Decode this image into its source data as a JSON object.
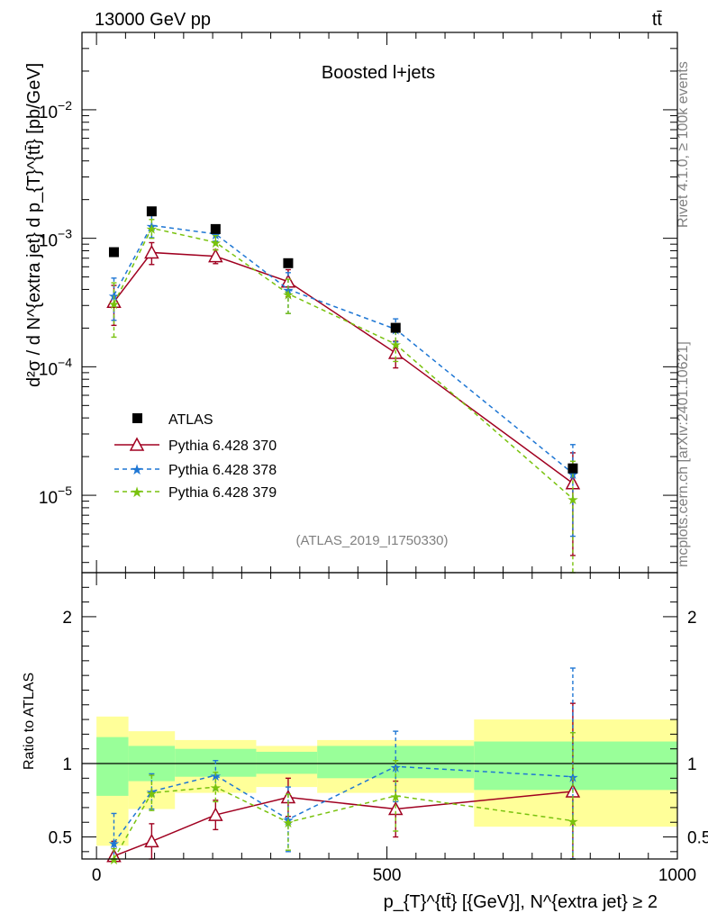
{
  "header": {
    "left_label": "13000 GeV pp",
    "right_label": "tt̄"
  },
  "side_labels": {
    "rivet": "Rivet 4.1.0, ≥ 100k events",
    "mcplots": "mcplots.cern.ch [arXiv:2401.10621]"
  },
  "chart_data": {
    "type": "line",
    "title": "Boosted l+jets",
    "analysis_tag": "(ATLAS_2019_I1750330)",
    "xlabel": "p_{T}^{tt̄} [{GeV}], N^{extra jet} ≥ 2",
    "ylabel": "d²σ / d N^{extra jet} d p_{T}^{tt̄} [pb/GeV]",
    "ratio_ylabel": "Ratio to ATLAS",
    "xlim": [
      -25,
      1000
    ],
    "ylim": [
      2.5e-06,
      0.04
    ],
    "yscale": "log",
    "ratio_ylim": [
      0.35,
      2.3
    ],
    "x_ticks": [
      0,
      500,
      1000
    ],
    "y_tick_labels": [
      "10^-5",
      "10^-4",
      "10^-3",
      "10^-2"
    ],
    "ratio_tick_labels": [
      "0.5",
      "1",
      "2"
    ],
    "x": [
      30,
      95,
      205,
      330,
      515,
      820
    ],
    "bin_edges": [
      0,
      55,
      135,
      275,
      380,
      650,
      1000
    ],
    "data": {
      "name": "ATLAS",
      "color": "#000000",
      "values": [
        0.00078,
        0.00162,
        0.00118,
        0.00064,
        0.000201,
        1.62e-05
      ]
    },
    "series": [
      {
        "name": "Pythia 6.428 370",
        "color": "#a00020",
        "marker": "open-triangle",
        "dash": "solid",
        "values": [
          0.00032,
          0.000775,
          0.000725,
          0.00046,
          0.000128,
          1.24e-05
        ],
        "errors": [
          0.00011,
          0.00015,
          9e-05,
          0.00011,
          3e-05,
          9e-06
        ],
        "ratio": [
          0.37,
          0.47,
          0.65,
          0.77,
          0.69,
          0.81
        ],
        "ratio_errors": [
          0.1,
          0.12,
          0.1,
          0.13,
          0.19,
          0.6
        ]
      },
      {
        "name": "Pythia 6.428 378",
        "color": "#1f77d4",
        "marker": "star",
        "dash": "dashed",
        "values": [
          0.00036,
          0.00126,
          0.00108,
          0.0004,
          0.000196,
          1.48e-05
        ],
        "errors": [
          0.00013,
          0.00025,
          0.00013,
          0.00014,
          4e-05,
          1e-05
        ],
        "ratio": [
          0.46,
          0.81,
          0.92,
          0.62,
          0.98,
          0.91
        ],
        "ratio_errors": [
          0.2,
          0.12,
          0.1,
          0.22,
          0.24,
          0.74
        ]
      },
      {
        "name": "Pythia 6.428 379",
        "color": "#79c20e",
        "marker": "star",
        "dash": "dashed",
        "values": [
          0.00031,
          0.0012,
          0.00093,
          0.00037,
          0.00015,
          9.4e-06
        ],
        "errors": [
          0.00014,
          0.0002,
          0.00012,
          0.00011,
          4e-05,
          9e-06
        ],
        "ratio": [
          0.3,
          0.8,
          0.84,
          0.6,
          0.78,
          0.61
        ],
        "ratio_errors": [
          0.12,
          0.12,
          0.1,
          0.19,
          0.24,
          0.6
        ]
      }
    ],
    "ratio_bands": {
      "stat_color": "#99ff99",
      "total_color": "#ffff99",
      "stat": [
        [
          0.78,
          1.18
        ],
        [
          0.88,
          1.12
        ],
        [
          0.91,
          1.1
        ],
        [
          0.93,
          1.08
        ],
        [
          0.9,
          1.12
        ],
        [
          0.82,
          1.15
        ]
      ],
      "total": [
        [
          0.44,
          1.32
        ],
        [
          0.69,
          1.22
        ],
        [
          0.8,
          1.16
        ],
        [
          0.84,
          1.12
        ],
        [
          0.8,
          1.16
        ],
        [
          0.57,
          1.3
        ]
      ]
    }
  }
}
